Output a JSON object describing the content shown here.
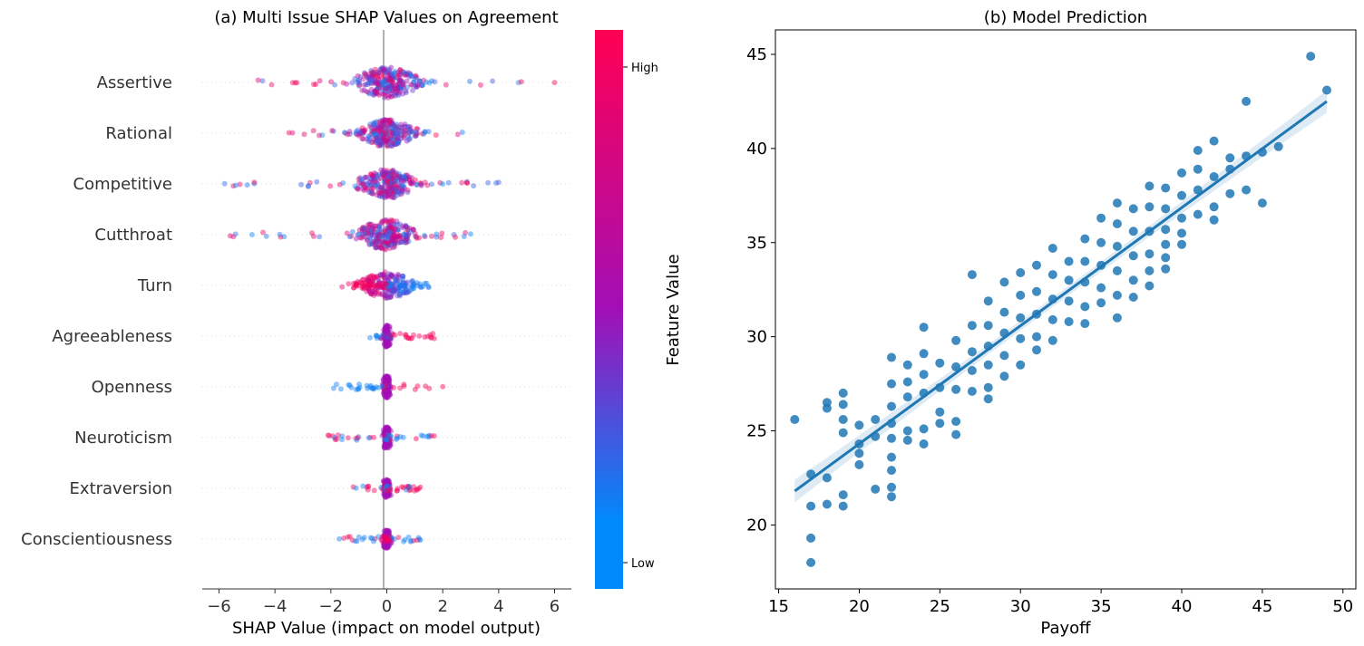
{
  "chart_data": [
    {
      "type": "scatter",
      "subtype": "shap-beeswarm",
      "title": "(a) Multi Issue SHAP Values on Agreement",
      "xlabel": "SHAP Value (impact on model output)",
      "ylabel": "",
      "xlim": [
        -6.6,
        6.6
      ],
      "xticks": [
        -6,
        -4,
        -2,
        0,
        2,
        4,
        6
      ],
      "features": [
        "Assertive",
        "Rational",
        "Competitive",
        "Cutthroat",
        "Turn",
        "Agreeableness",
        "Openness",
        "Neuroticism",
        "Extraversion",
        "Conscientiousness"
      ],
      "feature_shap_ranges": [
        {
          "feature": "Assertive",
          "min": -4.6,
          "max": 6.0
        },
        {
          "feature": "Rational",
          "min": -3.5,
          "max": 2.7
        },
        {
          "feature": "Competitive",
          "min": -5.8,
          "max": 4.0
        },
        {
          "feature": "Cutthroat",
          "min": -5.6,
          "max": 3.0
        },
        {
          "feature": "Turn",
          "min": -1.6,
          "max": 1.5
        },
        {
          "feature": "Agreeableness",
          "min": -0.6,
          "max": 1.7
        },
        {
          "feature": "Openness",
          "min": -1.9,
          "max": 2.0
        },
        {
          "feature": "Neuroticism",
          "min": -2.1,
          "max": 1.7
        },
        {
          "feature": "Extraversion",
          "min": -1.2,
          "max": 1.2
        },
        {
          "feature": "Conscientiousness",
          "min": -1.7,
          "max": 1.2
        }
      ],
      "colorbar": {
        "label": "Feature Value",
        "low_label": "Low",
        "high_label": "High",
        "low_color": "#008afb",
        "mid_color": "#a20fb6",
        "high_color": "#ff0052"
      }
    },
    {
      "type": "scatter",
      "title": "(b) Model Prediction",
      "xlabel": "Payoff",
      "ylabel": "",
      "xlim": [
        14.8,
        50.8
      ],
      "ylim": [
        16.6,
        46.3
      ],
      "xticks": [
        15,
        20,
        25,
        30,
        35,
        40,
        45,
        50
      ],
      "yticks": [
        20,
        25,
        30,
        35,
        40,
        45
      ],
      "regression_line": {
        "x": [
          16,
          49
        ],
        "y": [
          21.8,
          42.5
        ],
        "color": "#1f77b4"
      },
      "point_color": "#1f77b4",
      "sample_points": [
        {
          "x": 16,
          "y": 25.6
        },
        {
          "x": 17,
          "y": 22.7
        },
        {
          "x": 17,
          "y": 21.0
        },
        {
          "x": 17,
          "y": 19.3
        },
        {
          "x": 17,
          "y": 18.0
        },
        {
          "x": 18,
          "y": 26.5
        },
        {
          "x": 18,
          "y": 26.2
        },
        {
          "x": 18,
          "y": 22.5
        },
        {
          "x": 18,
          "y": 21.1
        },
        {
          "x": 19,
          "y": 27.0
        },
        {
          "x": 19,
          "y": 26.4
        },
        {
          "x": 19,
          "y": 25.6
        },
        {
          "x": 19,
          "y": 24.9
        },
        {
          "x": 19,
          "y": 21.6
        },
        {
          "x": 19,
          "y": 21.0
        },
        {
          "x": 20,
          "y": 25.3
        },
        {
          "x": 20,
          "y": 24.3
        },
        {
          "x": 20,
          "y": 23.8
        },
        {
          "x": 20,
          "y": 23.2
        },
        {
          "x": 21,
          "y": 25.6
        },
        {
          "x": 21,
          "y": 24.7
        },
        {
          "x": 21,
          "y": 21.9
        },
        {
          "x": 22,
          "y": 28.9
        },
        {
          "x": 22,
          "y": 27.5
        },
        {
          "x": 22,
          "y": 26.3
        },
        {
          "x": 22,
          "y": 25.4
        },
        {
          "x": 22,
          "y": 24.6
        },
        {
          "x": 22,
          "y": 23.6
        },
        {
          "x": 22,
          "y": 22.9
        },
        {
          "x": 22,
          "y": 22.0
        },
        {
          "x": 22,
          "y": 21.5
        },
        {
          "x": 23,
          "y": 28.5
        },
        {
          "x": 23,
          "y": 27.6
        },
        {
          "x": 23,
          "y": 26.8
        },
        {
          "x": 23,
          "y": 25.0
        },
        {
          "x": 23,
          "y": 24.5
        },
        {
          "x": 24,
          "y": 30.5
        },
        {
          "x": 24,
          "y": 29.1
        },
        {
          "x": 24,
          "y": 28.0
        },
        {
          "x": 24,
          "y": 27.0
        },
        {
          "x": 24,
          "y": 25.1
        },
        {
          "x": 24,
          "y": 24.3
        },
        {
          "x": 25,
          "y": 28.6
        },
        {
          "x": 25,
          "y": 27.3
        },
        {
          "x": 25,
          "y": 26.0
        },
        {
          "x": 25,
          "y": 25.4
        },
        {
          "x": 26,
          "y": 29.8
        },
        {
          "x": 26,
          "y": 28.4
        },
        {
          "x": 26,
          "y": 27.2
        },
        {
          "x": 26,
          "y": 25.5
        },
        {
          "x": 26,
          "y": 24.8
        },
        {
          "x": 27,
          "y": 33.3
        },
        {
          "x": 27,
          "y": 30.6
        },
        {
          "x": 27,
          "y": 29.2
        },
        {
          "x": 27,
          "y": 28.2
        },
        {
          "x": 27,
          "y": 27.1
        },
        {
          "x": 28,
          "y": 31.9
        },
        {
          "x": 28,
          "y": 30.6
        },
        {
          "x": 28,
          "y": 29.5
        },
        {
          "x": 28,
          "y": 28.5
        },
        {
          "x": 28,
          "y": 27.3
        },
        {
          "x": 28,
          "y": 26.7
        },
        {
          "x": 29,
          "y": 32.9
        },
        {
          "x": 29,
          "y": 31.3
        },
        {
          "x": 29,
          "y": 30.2
        },
        {
          "x": 29,
          "y": 29.0
        },
        {
          "x": 29,
          "y": 27.9
        },
        {
          "x": 30,
          "y": 33.4
        },
        {
          "x": 30,
          "y": 32.2
        },
        {
          "x": 30,
          "y": 31.0
        },
        {
          "x": 30,
          "y": 29.9
        },
        {
          "x": 30,
          "y": 28.5
        },
        {
          "x": 31,
          "y": 33.8
        },
        {
          "x": 31,
          "y": 32.4
        },
        {
          "x": 31,
          "y": 31.2
        },
        {
          "x": 31,
          "y": 30.0
        },
        {
          "x": 31,
          "y": 29.3
        },
        {
          "x": 32,
          "y": 34.7
        },
        {
          "x": 32,
          "y": 33.3
        },
        {
          "x": 32,
          "y": 32.0
        },
        {
          "x": 32,
          "y": 30.9
        },
        {
          "x": 32,
          "y": 29.8
        },
        {
          "x": 33,
          "y": 34.0
        },
        {
          "x": 33,
          "y": 33.0
        },
        {
          "x": 33,
          "y": 31.9
        },
        {
          "x": 33,
          "y": 30.8
        },
        {
          "x": 34,
          "y": 35.2
        },
        {
          "x": 34,
          "y": 34.0
        },
        {
          "x": 34,
          "y": 32.9
        },
        {
          "x": 34,
          "y": 31.6
        },
        {
          "x": 34,
          "y": 30.7
        },
        {
          "x": 35,
          "y": 36.3
        },
        {
          "x": 35,
          "y": 35.0
        },
        {
          "x": 35,
          "y": 33.8
        },
        {
          "x": 35,
          "y": 32.6
        },
        {
          "x": 35,
          "y": 31.8
        },
        {
          "x": 36,
          "y": 37.1
        },
        {
          "x": 36,
          "y": 36.0
        },
        {
          "x": 36,
          "y": 34.8
        },
        {
          "x": 36,
          "y": 33.5
        },
        {
          "x": 36,
          "y": 32.2
        },
        {
          "x": 36,
          "y": 31.0
        },
        {
          "x": 37,
          "y": 36.8
        },
        {
          "x": 37,
          "y": 35.6
        },
        {
          "x": 37,
          "y": 34.3
        },
        {
          "x": 37,
          "y": 33.0
        },
        {
          "x": 37,
          "y": 32.1
        },
        {
          "x": 38,
          "y": 38.0
        },
        {
          "x": 38,
          "y": 36.9
        },
        {
          "x": 38,
          "y": 35.6
        },
        {
          "x": 38,
          "y": 34.4
        },
        {
          "x": 38,
          "y": 33.5
        },
        {
          "x": 38,
          "y": 32.7
        },
        {
          "x": 39,
          "y": 37.9
        },
        {
          "x": 39,
          "y": 36.8
        },
        {
          "x": 39,
          "y": 35.7
        },
        {
          "x": 39,
          "y": 34.9
        },
        {
          "x": 39,
          "y": 34.2
        },
        {
          "x": 39,
          "y": 33.6
        },
        {
          "x": 40,
          "y": 38.7
        },
        {
          "x": 40,
          "y": 37.5
        },
        {
          "x": 40,
          "y": 36.3
        },
        {
          "x": 40,
          "y": 35.5
        },
        {
          "x": 40,
          "y": 34.9
        },
        {
          "x": 41,
          "y": 39.9
        },
        {
          "x": 41,
          "y": 38.9
        },
        {
          "x": 41,
          "y": 37.8
        },
        {
          "x": 41,
          "y": 36.5
        },
        {
          "x": 42,
          "y": 40.4
        },
        {
          "x": 42,
          "y": 38.5
        },
        {
          "x": 42,
          "y": 36.9
        },
        {
          "x": 42,
          "y": 36.2
        },
        {
          "x": 43,
          "y": 39.5
        },
        {
          "x": 43,
          "y": 38.9
        },
        {
          "x": 43,
          "y": 37.6
        },
        {
          "x": 44,
          "y": 42.5
        },
        {
          "x": 44,
          "y": 39.6
        },
        {
          "x": 44,
          "y": 37.8
        },
        {
          "x": 45,
          "y": 39.8
        },
        {
          "x": 45,
          "y": 37.1
        },
        {
          "x": 46,
          "y": 40.1
        },
        {
          "x": 48,
          "y": 44.9
        },
        {
          "x": 49,
          "y": 43.1
        }
      ]
    }
  ]
}
